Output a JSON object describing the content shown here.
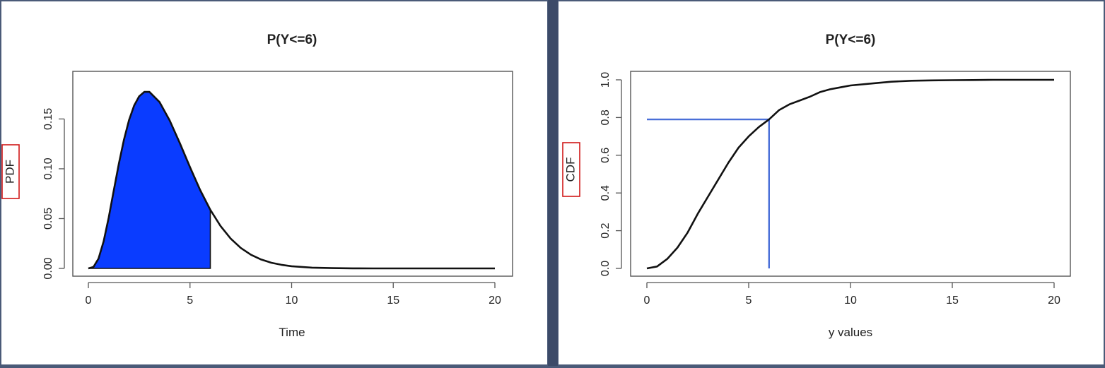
{
  "chart_data": [
    {
      "type": "area",
      "title": "P(Y<=6)",
      "xlabel": "Time",
      "ylabel": "PDF",
      "xlim": [
        0,
        20
      ],
      "ylim": [
        0,
        0.19
      ],
      "x_ticks": [
        "0",
        "5",
        "10",
        "15",
        "20"
      ],
      "y_ticks": [
        "0.00",
        "0.05",
        "0.10",
        "0.15"
      ],
      "series": [
        {
          "x": [
            0,
            0.25,
            0.5,
            0.75,
            1,
            1.25,
            1.5,
            1.75,
            2,
            2.25,
            2.5,
            2.75,
            3,
            3.5,
            4,
            4.5,
            5,
            5.5,
            6,
            6.5,
            7,
            7.5,
            8,
            8.5,
            9,
            9.5,
            10,
            11,
            12,
            13,
            14,
            15,
            16,
            17,
            18,
            19,
            20
          ],
          "y": [
            0,
            0.0015,
            0.0099,
            0.0272,
            0.0511,
            0.0781,
            0.105,
            0.1291,
            0.1488,
            0.1634,
            0.1728,
            0.1772,
            0.1772,
            0.167,
            0.1485,
            0.1257,
            0.1015,
            0.0787,
            0.0588,
            0.0426,
            0.0299,
            0.0205,
            0.0137,
            0.0089,
            0.0057,
            0.0036,
            0.0022,
            0.0008,
            0.0003,
            0.0001,
            0,
            0,
            0,
            0,
            0,
            0,
            0
          ]
        }
      ],
      "shaded_region": {
        "from": 0,
        "to": 6,
        "color": "#0a3cff"
      },
      "line_color": "#111111",
      "grid": false
    },
    {
      "type": "line",
      "title": "P(Y<=6)",
      "xlabel": "y values",
      "ylabel": "CDF",
      "xlim": [
        0,
        20
      ],
      "ylim": [
        0,
        1
      ],
      "x_ticks": [
        "0",
        "5",
        "10",
        "15",
        "20"
      ],
      "y_ticks": [
        "0.0",
        "0.2",
        "0.4",
        "0.6",
        "0.8",
        "1.0"
      ],
      "series": [
        {
          "x": [
            0,
            0.5,
            1,
            1.5,
            2,
            2.5,
            3,
            3.5,
            4,
            4.5,
            5,
            5.5,
            6,
            6.5,
            7,
            7.5,
            8,
            8.5,
            9,
            9.5,
            10,
            11,
            12,
            13,
            14,
            15,
            16,
            17,
            18,
            19,
            20
          ],
          "y": [
            0,
            0.01,
            0.05,
            0.11,
            0.19,
            0.29,
            0.38,
            0.47,
            0.56,
            0.64,
            0.7,
            0.75,
            0.79,
            0.84,
            0.87,
            0.89,
            0.91,
            0.935,
            0.95,
            0.96,
            0.97,
            0.98,
            0.99,
            0.995,
            0.997,
            0.998,
            0.999,
            1,
            1,
            1,
            1
          ]
        }
      ],
      "reference": {
        "x": 6,
        "y": 0.79,
        "color": "#4a6fd8"
      },
      "line_color": "#111111",
      "grid": false
    }
  ]
}
